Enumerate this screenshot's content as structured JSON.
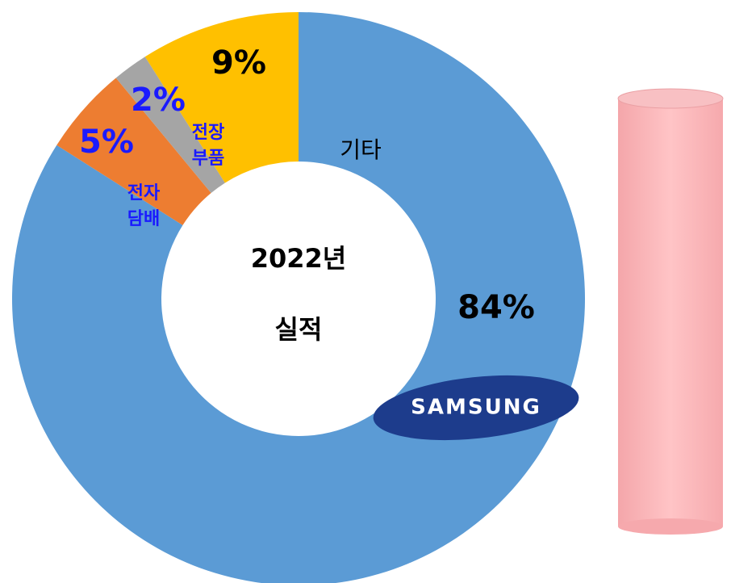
{
  "chart_data": {
    "type": "donut",
    "center_text": [
      "2022년",
      "실적"
    ],
    "categories": [
      [
        "SAMSUNG"
      ],
      [
        "전자",
        "담배"
      ],
      [
        "전장",
        "부품"
      ],
      [
        "기타"
      ]
    ],
    "values": [
      84,
      5,
      2,
      9
    ],
    "value_labels": [
      "84%",
      "5%",
      "2%",
      "9%"
    ],
    "colors": [
      "#5b9bd5",
      "#ed7d31",
      "#a5a5a5",
      "#ffc000"
    ],
    "value_label_colors": [
      "#000000",
      "#1a1aff",
      "#1a1aff",
      "#000000"
    ],
    "category_label_colors": [
      "#ffffff",
      "#1a1aff",
      "#1a1aff",
      "#000000"
    ]
  }
}
